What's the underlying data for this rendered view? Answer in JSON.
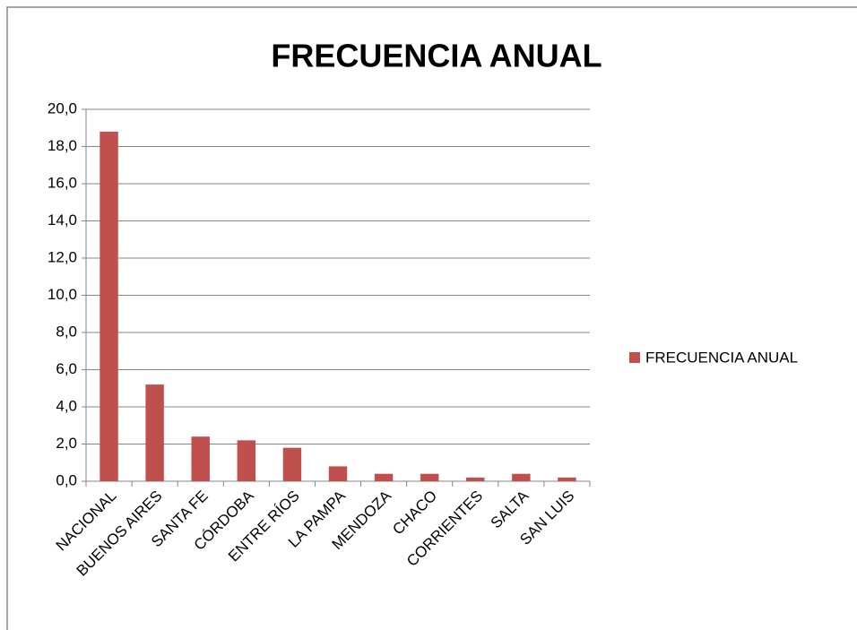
{
  "chart_data": {
    "type": "bar",
    "title": "FRECUENCIA ANUAL",
    "categories": [
      "NACIONAL",
      "BUENOS AIRES",
      "SANTA FE",
      "CÓRDOBA",
      "ENTRE RÍOS",
      "LA PAMPA",
      "MENDOZA",
      "CHACO",
      "CORRIENTES",
      "SALTA",
      "SAN LUIS"
    ],
    "series": [
      {
        "name": "FRECUENCIA ANUAL",
        "color": "#c0504d",
        "values": [
          18.8,
          5.2,
          2.4,
          2.2,
          1.8,
          0.8,
          0.4,
          0.4,
          0.2,
          0.4,
          0.2
        ]
      }
    ],
    "ylim": [
      0,
      20
    ],
    "yticks": [
      {
        "value": 0,
        "label": "0,0"
      },
      {
        "value": 2,
        "label": "2,0"
      },
      {
        "value": 4,
        "label": "4,0"
      },
      {
        "value": 6,
        "label": "6,0"
      },
      {
        "value": 8,
        "label": "8,0"
      },
      {
        "value": 10,
        "label": "10,0"
      },
      {
        "value": 12,
        "label": "12,0"
      },
      {
        "value": 14,
        "label": "14,0"
      },
      {
        "value": 16,
        "label": "16,0"
      },
      {
        "value": 18,
        "label": "18,0"
      },
      {
        "value": 20,
        "label": "20,0"
      }
    ],
    "grid": true,
    "legend": "right"
  }
}
